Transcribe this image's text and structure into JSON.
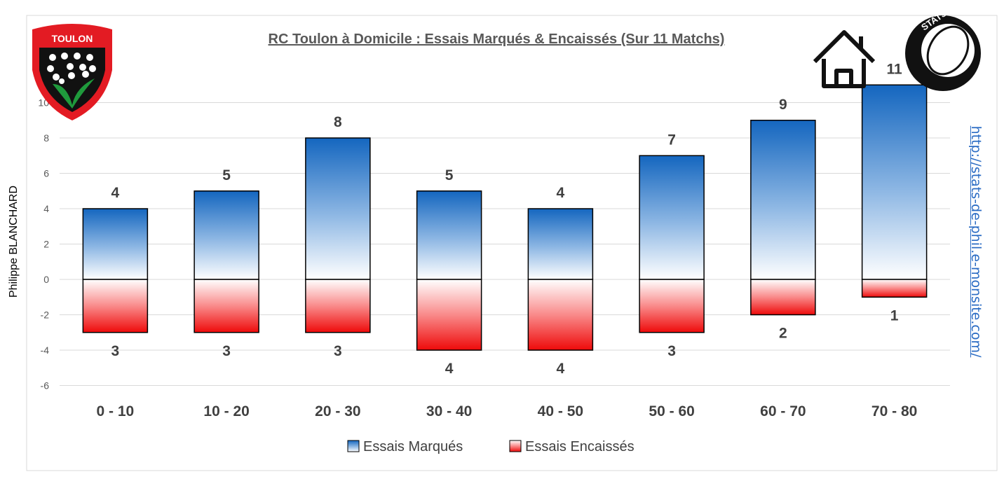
{
  "chart_data": {
    "type": "bar",
    "title": "RC Toulon à Domicile : Essais Marqués & Encaissés (Sur 11 Matchs)",
    "ylabel": "Philippe BLANCHARD",
    "xlabel": "",
    "ylim": [
      -6,
      10
    ],
    "yticks": [
      10,
      8,
      6,
      4,
      2,
      0,
      -2,
      -4,
      -6
    ],
    "grid": true,
    "legend": "bottom",
    "categories": [
      "0 - 10",
      "10 - 20",
      "20 - 30",
      "30 - 40",
      "40 - 50",
      "50 - 60",
      "60 - 70",
      "70 - 80"
    ],
    "series": [
      {
        "name": "Essais Marqués",
        "values": [
          4,
          5,
          8,
          5,
          4,
          7,
          9,
          11
        ],
        "color": "#1a6fc4"
      },
      {
        "name": "Essais Encaissés",
        "values": [
          -3,
          -3,
          -3,
          -4,
          -4,
          -3,
          -2,
          -1
        ],
        "labels": [
          "3",
          "3",
          "3",
          "4",
          "4",
          "3",
          "2",
          "1"
        ],
        "color": "#f01010"
      }
    ]
  },
  "watermark_url": "http://stats-de-phil.e-monsite.com/",
  "logos": {
    "club": "TOULON RCT",
    "stats": "STATS DE PHIL",
    "home_icon": "house-icon"
  }
}
